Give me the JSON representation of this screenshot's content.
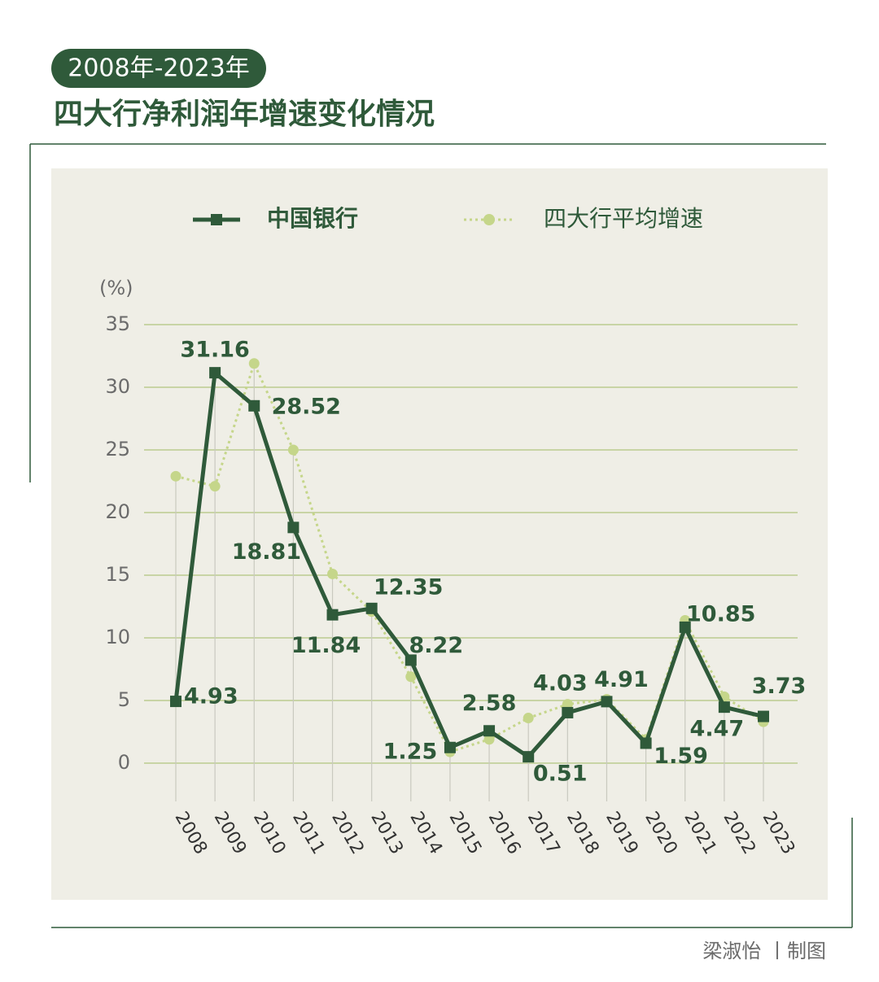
{
  "chart_data": {
    "type": "line",
    "badge": "2008年-2023年",
    "title": "四大行净利润年增速变化情况",
    "y_label": "(%)",
    "credit": "梁淑怡 丨制图",
    "categories": [
      "2008",
      "2009",
      "2010",
      "2011",
      "2012",
      "2013",
      "2014",
      "2015",
      "2016",
      "2017",
      "2018",
      "2019",
      "2020",
      "2021",
      "2022",
      "2023"
    ],
    "series": [
      {
        "name": "中国银行",
        "color": "#2f5a3a",
        "values": [
          4.93,
          31.16,
          28.52,
          18.81,
          11.84,
          12.35,
          8.22,
          1.25,
          2.58,
          0.51,
          4.03,
          4.91,
          1.59,
          10.85,
          4.47,
          3.73
        ]
      },
      {
        "name": "四大行平均增速",
        "color": "#c5d68a",
        "values": [
          22.9,
          22.1,
          31.9,
          25.0,
          15.1,
          12.1,
          6.9,
          0.9,
          1.9,
          3.6,
          4.7,
          5.1,
          1.9,
          11.4,
          5.3,
          3.3
        ]
      }
    ],
    "ylim": [
      0,
      35
    ],
    "yticks": [
      0,
      5,
      10,
      15,
      20,
      25,
      30,
      35
    ],
    "grid": true
  }
}
